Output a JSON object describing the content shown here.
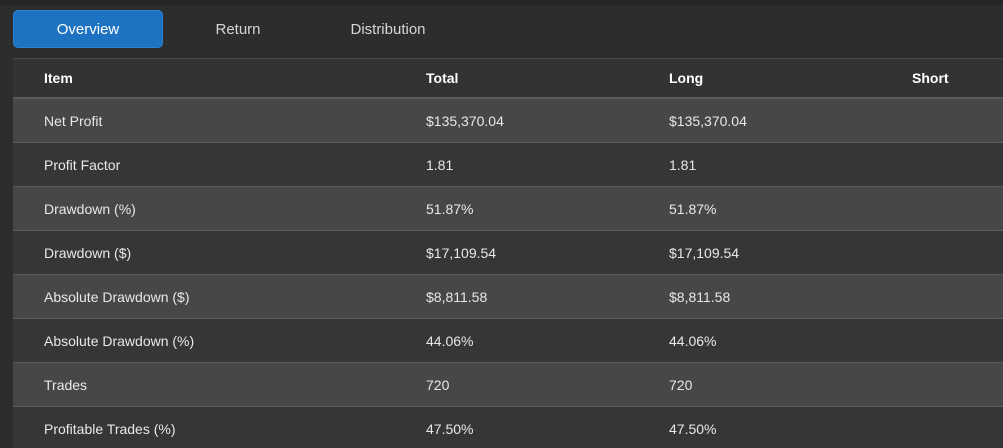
{
  "tabs": [
    {
      "label": "Overview",
      "active": true
    },
    {
      "label": "Return",
      "active": false
    },
    {
      "label": "Distribution",
      "active": false
    }
  ],
  "table": {
    "headers": [
      "Item",
      "Total",
      "Long",
      "Short"
    ],
    "rows": [
      {
        "item": "Net Profit",
        "total": "$135,370.04",
        "long": "$135,370.04",
        "short": ""
      },
      {
        "item": "Profit Factor",
        "total": "1.81",
        "long": "1.81",
        "short": ""
      },
      {
        "item": "Drawdown (%)",
        "total": "51.87%",
        "long": "51.87%",
        "short": ""
      },
      {
        "item": "Drawdown ($)",
        "total": "$17,109.54",
        "long": "$17,109.54",
        "short": ""
      },
      {
        "item": "Absolute Drawdown ($)",
        "total": "$8,811.58",
        "long": "$8,811.58",
        "short": ""
      },
      {
        "item": "Absolute Drawdown (%)",
        "total": "44.06%",
        "long": "44.06%",
        "short": ""
      },
      {
        "item": "Trades",
        "total": "720",
        "long": "720",
        "short": ""
      },
      {
        "item": "Profitable Trades (%)",
        "total": "47.50%",
        "long": "47.50%",
        "short": ""
      }
    ]
  },
  "colors": {
    "accent": "#1d73c1",
    "background": "#2d2d2d",
    "row_odd": "#474747",
    "row_even": "#363636"
  }
}
